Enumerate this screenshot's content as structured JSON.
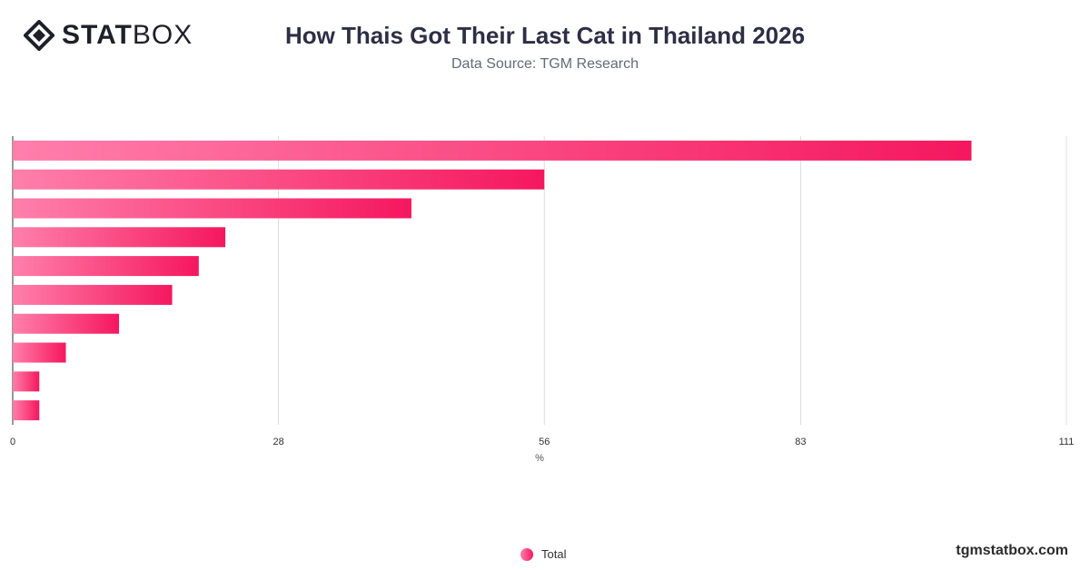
{
  "brand": {
    "logo_bold": "STAT",
    "logo_light": "BOX"
  },
  "header": {
    "title": "How Thais Got Their Last Cat in Thailand 2026",
    "subtitle": "Data Source: TGM Research"
  },
  "footer": {
    "site": "tgmstatbox.com"
  },
  "colors": {
    "bar_start": "#ff7fab",
    "bar_end": "#f5175f",
    "grid": "#dddddd",
    "axis": "#333333"
  },
  "chart_data": {
    "type": "bar",
    "orientation": "horizontal",
    "categories": [
      "",
      "",
      "",
      "",
      "",
      "",
      "",
      "",
      "",
      ""
    ],
    "series": [
      {
        "name": "Total",
        "values": [
          101,
          56,
          42,
          22.4,
          19.6,
          16.8,
          11.2,
          5.6,
          2.8,
          2.8
        ]
      }
    ],
    "xlabel": "%",
    "xlim": [
      0,
      111
    ],
    "ticks": [
      0,
      28,
      56,
      83,
      111
    ],
    "grid": true,
    "legend": "bottom-center"
  }
}
